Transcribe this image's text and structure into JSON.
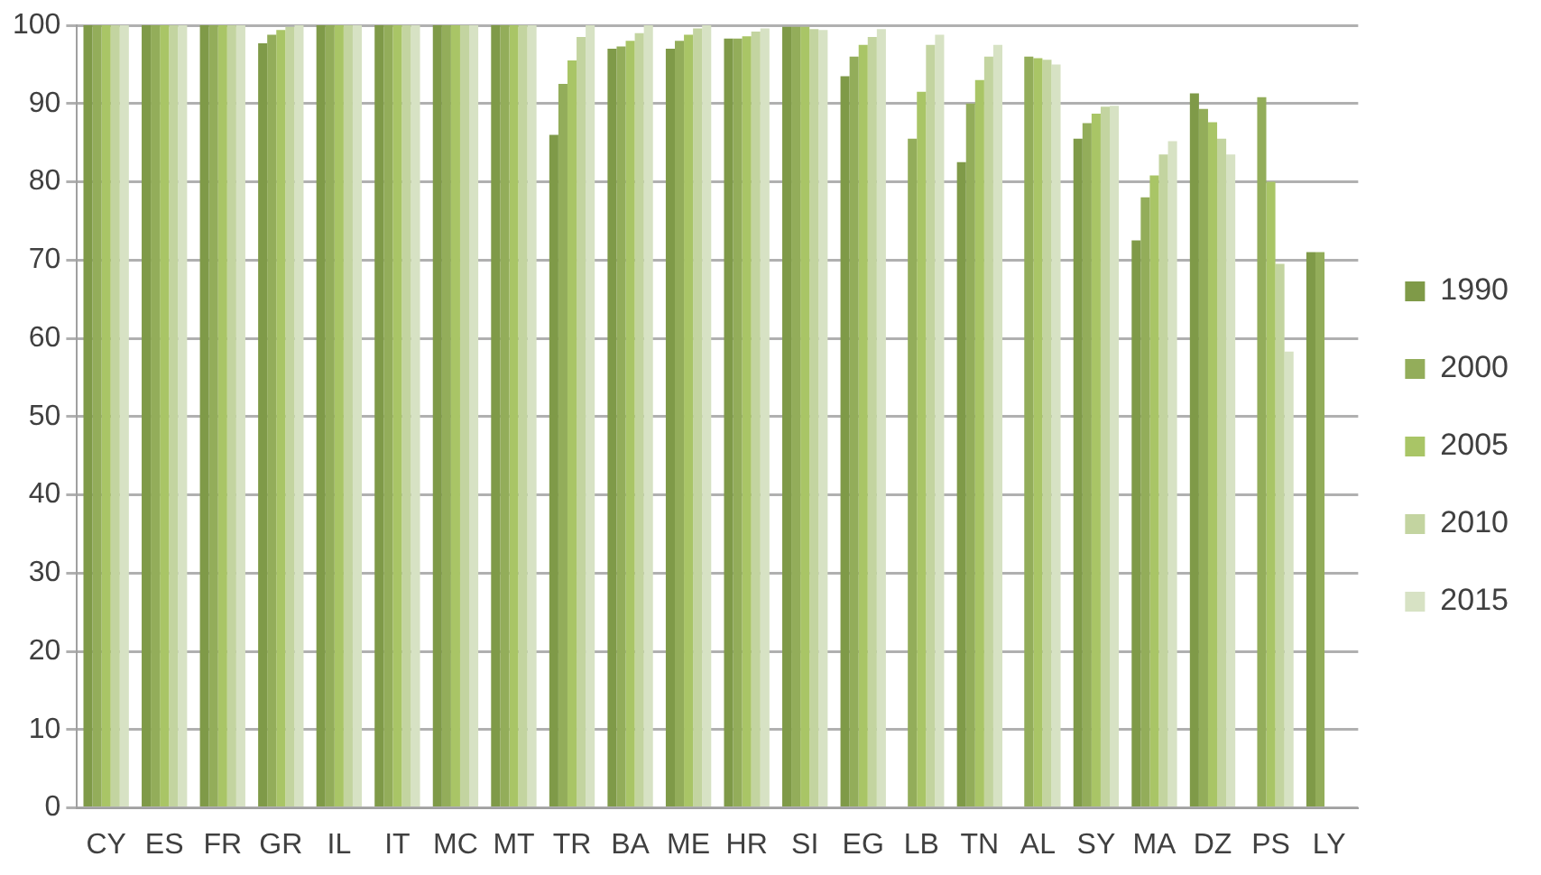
{
  "chart_data": {
    "type": "bar",
    "categories": [
      "CY",
      "ES",
      "FR",
      "GR",
      "IL",
      "IT",
      "MC",
      "MT",
      "TR",
      "BA",
      "ME",
      "HR",
      "SI",
      "EG",
      "LB",
      "TN",
      "AL",
      "SY",
      "MA",
      "DZ",
      "PS",
      "LY"
    ],
    "series": [
      {
        "name": "1990",
        "color": "#7f9a48",
        "values": [
          100,
          100,
          100,
          97.7,
          100,
          100,
          100,
          100,
          86,
          97,
          97,
          98.3,
          99.8,
          93.5,
          null,
          82.5,
          null,
          85.5,
          72.5,
          91.3,
          null,
          71
        ]
      },
      {
        "name": "2000",
        "color": "#93ad5a",
        "values": [
          100,
          100,
          100,
          98.8,
          100,
          100,
          100,
          100,
          92.5,
          97.3,
          98,
          98.3,
          99.8,
          96,
          85.5,
          90,
          96,
          87.5,
          78,
          89.3,
          90.8,
          71
        ]
      },
      {
        "name": "2005",
        "color": "#a9c566",
        "values": [
          100,
          100,
          100,
          99.4,
          100,
          100,
          100,
          100,
          95.5,
          98,
          98.8,
          98.6,
          99.8,
          97.5,
          91.5,
          93,
          95.8,
          88.7,
          80.8,
          87.6,
          80,
          null
        ]
      },
      {
        "name": "2010",
        "color": "#c3d4a0",
        "values": [
          100,
          100,
          100,
          99.8,
          100,
          100,
          100,
          100,
          98.5,
          99,
          99.6,
          99.2,
          99.5,
          98.5,
          97.5,
          96,
          95.6,
          89.6,
          83.5,
          85.5,
          69.5,
          null
        ]
      },
      {
        "name": "2015",
        "color": "#d7e2c4",
        "values": [
          100,
          100,
          100,
          100,
          100,
          100,
          100,
          100,
          100,
          100,
          100,
          99.6,
          99.4,
          99.5,
          98.8,
          97.5,
          95,
          89.7,
          85.2,
          83.5,
          58.3,
          null
        ]
      }
    ],
    "ylim": [
      0,
      100
    ],
    "yticks": [
      0,
      10,
      20,
      30,
      40,
      50,
      60,
      70,
      80,
      90,
      100
    ],
    "grid": "y",
    "legend": "right"
  }
}
